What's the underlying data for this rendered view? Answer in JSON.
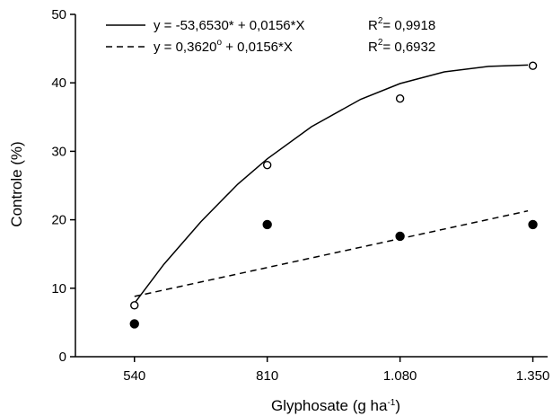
{
  "chart_data": {
    "type": "scatter",
    "xlabel": {
      "text": "Glyphosate (g ha",
      "sup": "-1",
      "suffix": ")"
    },
    "ylabel": "Controle (%)",
    "x_categories": [
      "540",
      "810",
      "1.080",
      "1.350"
    ],
    "x_values": [
      540,
      810,
      1080,
      1350
    ],
    "xlim": [
      420,
      1380
    ],
    "ylim": [
      0,
      50
    ],
    "y_ticks": [
      0,
      10,
      20,
      30,
      40,
      50
    ],
    "grid": false,
    "legend_position": "top-left",
    "series": [
      {
        "marker": "open-circle",
        "line_style": "solid",
        "points": [
          [
            540,
            7.5
          ],
          [
            810,
            28
          ],
          [
            1080,
            37.7
          ],
          [
            1350,
            42.5
          ]
        ],
        "fit_curve": [
          [
            540,
            7.8
          ],
          [
            600,
            13.5
          ],
          [
            675,
            19.7
          ],
          [
            750,
            25.2
          ],
          [
            810,
            28.9
          ],
          [
            900,
            33.6
          ],
          [
            1000,
            37.6
          ],
          [
            1080,
            39.9
          ],
          [
            1170,
            41.6
          ],
          [
            1260,
            42.4
          ],
          [
            1340,
            42.6
          ]
        ],
        "equation": {
          "a": "y = -53,6530* + 0,0156*X",
          "r2_label": "R",
          "r2_sup": "2",
          "r2_value": "= 0,9918"
        }
      },
      {
        "marker": "filled-circle",
        "line_style": "dashed",
        "points": [
          [
            540,
            4.8
          ],
          [
            810,
            19.3
          ],
          [
            1080,
            17.6
          ],
          [
            1350,
            19.3
          ]
        ],
        "fit_curve": [
          [
            540,
            8.8
          ],
          [
            1340,
            21.3
          ]
        ],
        "equation": {
          "a": "y = 0,3620",
          "a_sup": "o",
          "b": " + 0,0156*X",
          "r2_label": "R",
          "r2_sup": "2",
          "r2_value": "= 0,6932"
        }
      }
    ]
  }
}
